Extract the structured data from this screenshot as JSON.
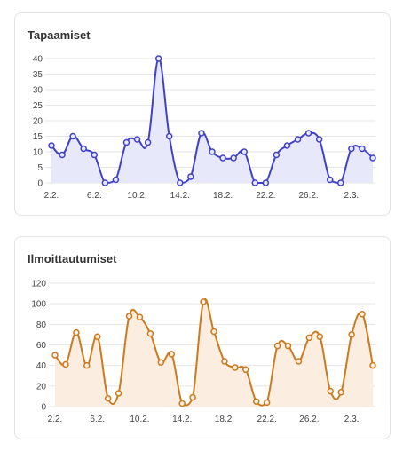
{
  "charts": [
    {
      "title": "Tapaamiset",
      "chart_data": {
        "type": "area",
        "x_tick_labels": [
          "2.2.",
          "6.2.",
          "10.2.",
          "14.2.",
          "18.2.",
          "22.2.",
          "26.2.",
          "2.3."
        ],
        "ylim": [
          0,
          40
        ],
        "y_ticks": [
          0,
          5,
          10,
          15,
          20,
          25,
          30,
          35,
          40
        ],
        "grid": true,
        "values": [
          12,
          9,
          15,
          11,
          9,
          0,
          1,
          13,
          14,
          13,
          40,
          15,
          0,
          2,
          16,
          10,
          8,
          8,
          10,
          0,
          0,
          9,
          12,
          14,
          16,
          14,
          1,
          0,
          11,
          11,
          8
        ],
        "line_color": "#4040c8",
        "fill_color": "#e8e8fb"
      }
    },
    {
      "title": "Ilmoittautumiset",
      "chart_data": {
        "type": "area",
        "x_tick_labels": [
          "2.2.",
          "6.2.",
          "10.2.",
          "14.2.",
          "18.2.",
          "22.2.",
          "26.2.",
          "2.3."
        ],
        "ylim": [
          0,
          120
        ],
        "y_ticks": [
          0,
          20,
          40,
          60,
          80,
          100,
          120
        ],
        "grid": true,
        "values": [
          50,
          41,
          72,
          40,
          68,
          8,
          13,
          88,
          87,
          71,
          43,
          51,
          3,
          9,
          102,
          73,
          44,
          38,
          36,
          5,
          4,
          59,
          59,
          44,
          67,
          68,
          15,
          14,
          70,
          90,
          40
        ],
        "line_color": "#cc7a1e",
        "fill_color": "#fbeee0"
      }
    }
  ]
}
